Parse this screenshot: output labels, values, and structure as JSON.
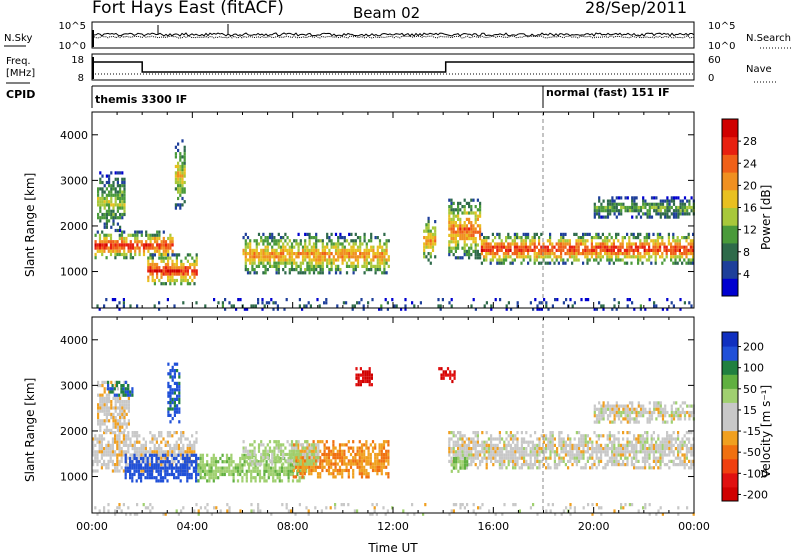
{
  "header": {
    "station": "Fort Hays East (fitACF)",
    "beam": "Beam 02",
    "date": "28/Sep/2011"
  },
  "noise_panel": {
    "left_label": "N.Sky",
    "right_label": "N.Search",
    "left_ticks": [
      "10^5",
      "10^0"
    ],
    "right_ticks": [
      "10^5",
      "10^0"
    ]
  },
  "freq_panel": {
    "left_label_line1": "Freq.",
    "left_label_line2": "[MHz]",
    "right_label": "Nave",
    "left_ticks": [
      "18",
      "8"
    ],
    "right_ticks": [
      "60",
      "0"
    ],
    "freq_steps": [
      {
        "start_hour": 0.0,
        "end_hour": 2.0,
        "value": "high"
      },
      {
        "start_hour": 2.0,
        "end_hour": 14.1,
        "value": "low"
      },
      {
        "start_hour": 14.1,
        "end_hour": 24.0,
        "value": "high"
      }
    ]
  },
  "cpid_panel": {
    "label": "CPID",
    "segments": [
      {
        "start_hour": 0.0,
        "text": "themis 3300 IF"
      },
      {
        "start_hour": 18.0,
        "text": "normal (fast) 151 IF"
      }
    ]
  },
  "chart_data": [
    {
      "type": "heatmap",
      "title": "",
      "ylabel": "Slant Range [km]",
      "xlabel": "",
      "x_unit": "hours UT",
      "xlim": [
        0,
        24
      ],
      "ylim": [
        200,
        4500
      ],
      "yticks": [
        "1000",
        "2000",
        "3000",
        "4000"
      ],
      "colorbar": {
        "label": "Power [dB]",
        "ticks": [
          "4",
          "8",
          "12",
          "16",
          "20",
          "24",
          "28"
        ],
        "colors": [
          "#0000d0",
          "#1e3f9a",
          "#2e6a4a",
          "#4a9a3a",
          "#a8c83a",
          "#e8c020",
          "#f09020",
          "#f06018",
          "#e82010",
          "#d00000"
        ]
      },
      "echo_regions": [
        {
          "t0": 0.1,
          "t1": 3.2,
          "r0": 1300,
          "r1": 1900,
          "peak_dB": 26
        },
        {
          "t0": 2.2,
          "t1": 4.2,
          "r0": 700,
          "r1": 1400,
          "peak_dB": 26
        },
        {
          "t0": 0.2,
          "t1": 1.3,
          "r0": 1900,
          "r1": 3200,
          "peak_dB": 14
        },
        {
          "t0": 6.0,
          "t1": 11.8,
          "r0": 950,
          "r1": 1850,
          "peak_dB": 20
        },
        {
          "t0": 3.3,
          "t1": 3.7,
          "r0": 2400,
          "r1": 3900,
          "peak_dB": 16
        },
        {
          "t0": 13.2,
          "t1": 13.7,
          "r0": 1200,
          "r1": 2200,
          "peak_dB": 20
        },
        {
          "t0": 14.2,
          "t1": 15.5,
          "r0": 1300,
          "r1": 2600,
          "peak_dB": 22
        },
        {
          "t0": 15.5,
          "t1": 24.0,
          "r0": 1200,
          "r1": 1850,
          "peak_dB": 26
        },
        {
          "t0": 20.0,
          "t1": 24.0,
          "r0": 2200,
          "r1": 2650,
          "peak_dB": 12
        },
        {
          "t0": 0.0,
          "t1": 24.0,
          "r0": 200,
          "r1": 420,
          "peak_dB": 8
        }
      ]
    },
    {
      "type": "heatmap",
      "title": "",
      "ylabel": "Slant Range [km]",
      "xlabel": "Time UT",
      "x_unit": "hours UT",
      "xlim": [
        0,
        24
      ],
      "ylim": [
        200,
        4500
      ],
      "yticks": [
        "1000",
        "2000",
        "3000",
        "4000"
      ],
      "xticks": [
        "00:00",
        "04:00",
        "08:00",
        "12:00",
        "16:00",
        "20:00",
        "00:00"
      ],
      "colorbar": {
        "label": "Velocity [m s⁻¹]",
        "ticks": [
          "200",
          "100",
          "50",
          "15",
          "-15",
          "-50",
          "-100",
          "-200"
        ],
        "colors": [
          "#1030c0",
          "#2050d8",
          "#208040",
          "#60b040",
          "#a0d070",
          "#c8c8c8",
          "#c8c8c8",
          "#f0a020",
          "#f07010",
          "#f04010",
          "#e01010",
          "#d00000"
        ]
      },
      "echo_regions": [
        {
          "t0": 0.0,
          "t1": 4.2,
          "r0": 1100,
          "r1": 2000,
          "vel": -5
        },
        {
          "t0": 1.3,
          "t1": 4.2,
          "r0": 900,
          "r1": 1500,
          "vel": 180
        },
        {
          "t0": 0.2,
          "t1": 1.5,
          "r0": 2000,
          "r1": 3100,
          "vel": -5
        },
        {
          "t0": 0.6,
          "t1": 1.6,
          "r0": 2800,
          "r1": 3100,
          "vel": 150
        },
        {
          "t0": 3.0,
          "t1": 3.5,
          "r0": 2200,
          "r1": 3500,
          "vel": 160
        },
        {
          "t0": 4.2,
          "t1": 8.5,
          "r0": 900,
          "r1": 1500,
          "vel": 40
        },
        {
          "t0": 8.0,
          "t1": 11.8,
          "r0": 1000,
          "r1": 1800,
          "vel": -45
        },
        {
          "t0": 6.0,
          "t1": 9.0,
          "r0": 1300,
          "r1": 1800,
          "vel": 20
        },
        {
          "t0": 10.5,
          "t1": 11.2,
          "r0": 3000,
          "r1": 3400,
          "vel": -200
        },
        {
          "t0": 13.8,
          "t1": 14.5,
          "r0": 3100,
          "r1": 3400,
          "vel": -200
        },
        {
          "t0": 14.2,
          "t1": 24.0,
          "r0": 1200,
          "r1": 2000,
          "vel": 0
        },
        {
          "t0": 14.3,
          "t1": 15.0,
          "r0": 1100,
          "r1": 1500,
          "vel": 40
        },
        {
          "t0": 20.0,
          "t1": 24.0,
          "r0": 2200,
          "r1": 2650,
          "vel": 0
        },
        {
          "t0": 0.0,
          "t1": 24.0,
          "r0": 200,
          "r1": 420,
          "vel": 0
        }
      ]
    }
  ]
}
